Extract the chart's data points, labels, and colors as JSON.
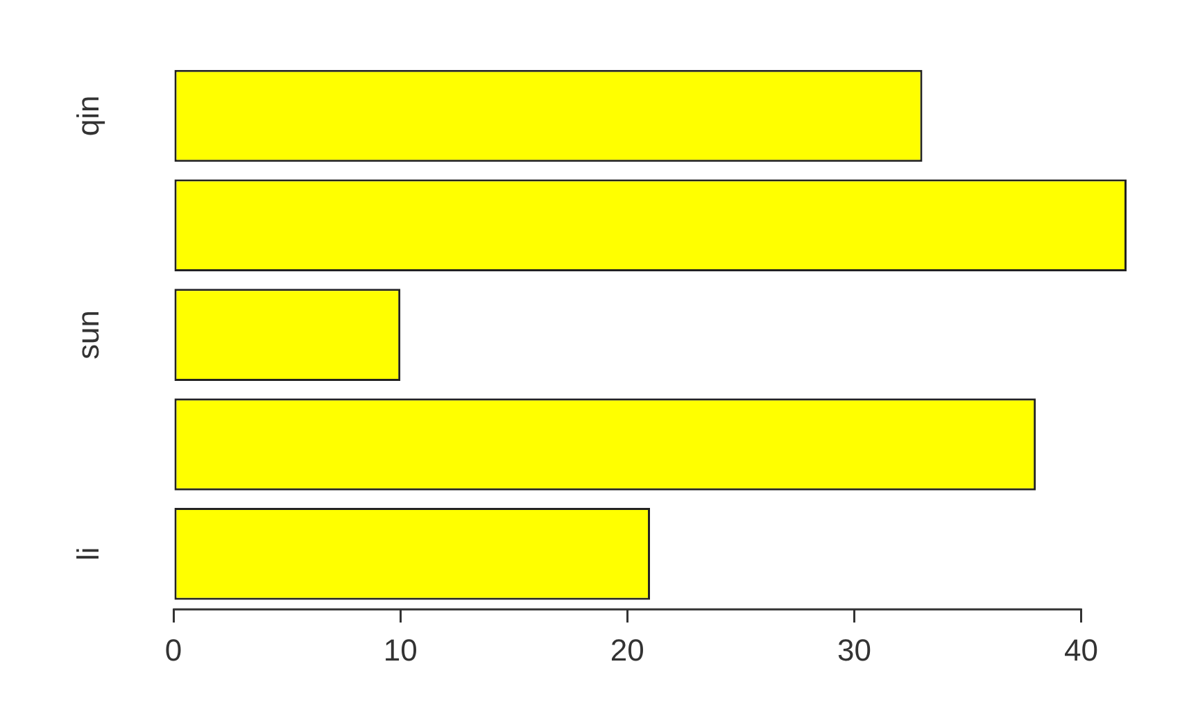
{
  "chart_data": {
    "type": "bar",
    "orientation": "horizontal",
    "categories": [
      "qin",
      null,
      "sun",
      null,
      "li"
    ],
    "values": [
      33,
      42,
      10,
      38,
      21
    ],
    "color": "#ffff00",
    "xlim": [
      0,
      42
    ],
    "xticks": [
      0,
      10,
      20,
      30,
      40
    ]
  }
}
